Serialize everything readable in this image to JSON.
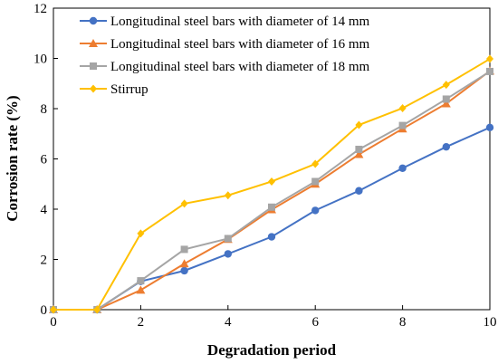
{
  "chart_data": {
    "type": "line",
    "xlabel": "Degradation period",
    "ylabel": "Corrosion rate (%)",
    "xlim": [
      0,
      10
    ],
    "ylim": [
      0,
      12
    ],
    "x_ticks": [
      0,
      2,
      4,
      6,
      8,
      10
    ],
    "y_ticks": [
      0,
      2,
      4,
      6,
      8,
      10,
      12
    ],
    "grid": false,
    "legend_position": "top-left",
    "x": [
      0,
      1,
      2,
      3,
      4,
      5,
      6,
      7,
      8,
      9,
      10
    ],
    "series": [
      {
        "name": "Longitudinal steel bars with diameter of 14 mm",
        "color": "#4472C4",
        "marker": "circle",
        "values": [
          0,
          0,
          1.13,
          1.55,
          2.22,
          2.9,
          3.95,
          4.73,
          5.63,
          6.48,
          7.25
        ]
      },
      {
        "name": "Longitudinal steel bars with diameter of 16 mm",
        "color": "#ED7D31",
        "marker": "triangle",
        "values": [
          0,
          0,
          0.78,
          1.83,
          2.8,
          3.98,
          5.0,
          6.18,
          7.2,
          8.2,
          9.5
        ]
      },
      {
        "name": "Longitudinal steel bars with diameter of 18 mm",
        "color": "#A5A5A5",
        "marker": "square",
        "values": [
          0,
          0,
          1.15,
          2.4,
          2.83,
          4.08,
          5.1,
          6.38,
          7.33,
          8.38,
          9.48
        ]
      },
      {
        "name": "Stirrup",
        "color": "#FFC000",
        "marker": "diamond",
        "values": [
          0,
          0,
          3.03,
          4.22,
          4.55,
          5.1,
          5.8,
          7.35,
          8.02,
          8.95,
          9.98
        ]
      }
    ]
  }
}
